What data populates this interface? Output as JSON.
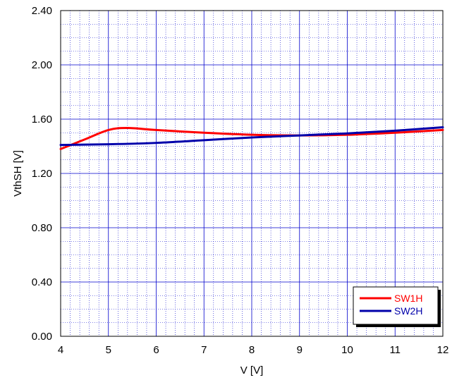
{
  "chart_data": {
    "type": "line",
    "xlabel": "V [V]",
    "ylabel": "VthSH [V]",
    "xlim": [
      4,
      12
    ],
    "ylim": [
      0,
      2.4
    ],
    "x_ticks": [
      "4",
      "5",
      "6",
      "7",
      "8",
      "9",
      "10",
      "11",
      "12"
    ],
    "y_ticks": [
      "0.00",
      "0.40",
      "0.80",
      "1.20",
      "1.60",
      "2.00",
      "2.40"
    ],
    "x_tick_values": [
      4,
      5,
      6,
      7,
      8,
      9,
      10,
      11,
      12
    ],
    "y_tick_values": [
      0,
      0.4,
      0.8,
      1.2,
      1.6,
      2.0,
      2.4
    ],
    "grid": true,
    "legend_position": "bottom-right",
    "series": [
      {
        "name": "SW1H",
        "color": "#ff0000",
        "x": [
          4.0,
          4.5,
          5.0,
          5.4,
          6.0,
          7.0,
          8.0,
          9.0,
          10.0,
          11.0,
          12.0
        ],
        "y": [
          1.38,
          1.45,
          1.52,
          1.535,
          1.52,
          1.5,
          1.485,
          1.48,
          1.485,
          1.5,
          1.52
        ]
      },
      {
        "name": "SW2H",
        "color": "#0000aa",
        "x": [
          4.0,
          5.0,
          6.0,
          7.0,
          8.0,
          9.0,
          10.0,
          11.0,
          12.0
        ],
        "y": [
          1.41,
          1.415,
          1.425,
          1.445,
          1.465,
          1.48,
          1.495,
          1.515,
          1.54
        ]
      }
    ]
  }
}
